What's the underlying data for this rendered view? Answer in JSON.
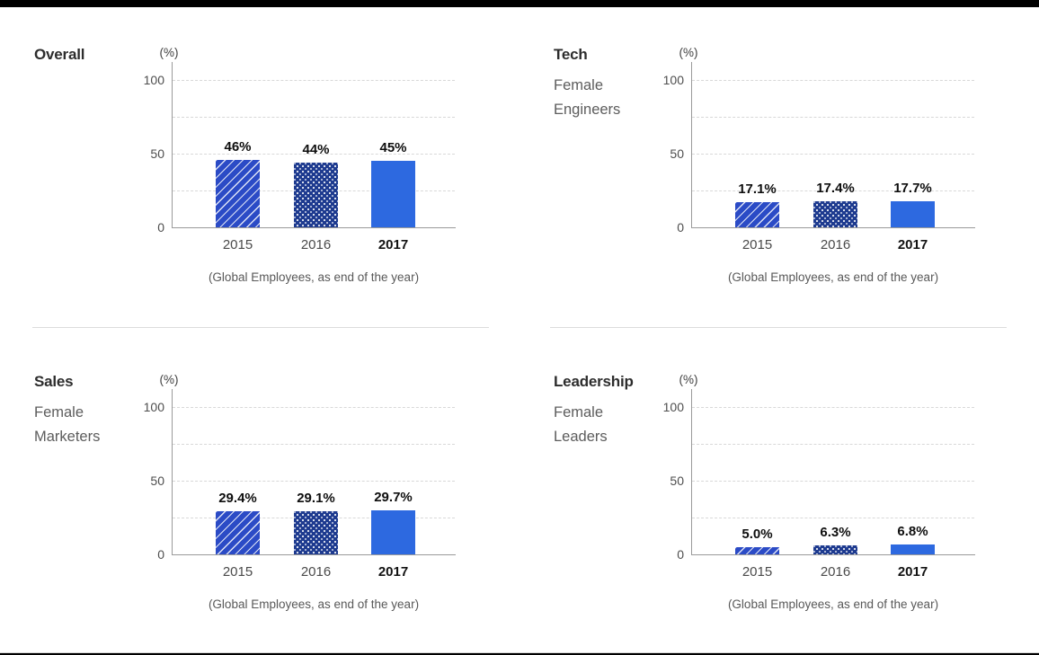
{
  "shared": {
    "unit_label": "(%)",
    "footnote": "(Global Employees, as end of the year)",
    "y_axis_ticks": [
      {
        "label": "100",
        "value": 100
      },
      {
        "label": "50",
        "value": 50
      },
      {
        "label": "0",
        "value": 0
      }
    ],
    "gridline_values": [
      25,
      50,
      75,
      100
    ],
    "highlighted_category": "2017",
    "bar_patterns": {
      "2015": "diagonal-stripes",
      "2016": "dots",
      "2017": "solid"
    },
    "colors": {
      "bar_2015": "#2b4bc6",
      "bar_2016": "#1d3a8f",
      "bar_2017": "#2d69e0",
      "axis_line": "#9a9a9a",
      "gridline": "#d8d8d8",
      "title_text": "#2d2d2d",
      "subtitle_text": "#5c5c5c",
      "value_label_text": "#0e0e0e",
      "top_bottom_bar": "#000000",
      "divider": "#dcdcdc"
    }
  },
  "chart_data": [
    {
      "type": "bar",
      "title": "Overall",
      "subtitle": [],
      "categories": [
        "2015",
        "2016",
        "2017"
      ],
      "values": [
        46,
        44,
        45
      ],
      "value_labels": [
        "46%",
        "44%",
        "45%"
      ],
      "unit": "(%)",
      "ylim": [
        0,
        100
      ],
      "grid": "dashed-horizontal",
      "legend": "none",
      "footnote": "(Global Employees, as end of the year)"
    },
    {
      "type": "bar",
      "title": "Tech",
      "subtitle": [
        "Female",
        "Engineers"
      ],
      "categories": [
        "2015",
        "2016",
        "2017"
      ],
      "values": [
        17.1,
        17.4,
        17.7
      ],
      "value_labels": [
        "17.1%",
        "17.4%",
        "17.7%"
      ],
      "unit": "(%)",
      "ylim": [
        0,
        100
      ],
      "grid": "dashed-horizontal",
      "legend": "none",
      "footnote": "(Global Employees, as end of the year)"
    },
    {
      "type": "bar",
      "title": "Sales",
      "subtitle": [
        "Female",
        "Marketers"
      ],
      "categories": [
        "2015",
        "2016",
        "2017"
      ],
      "values": [
        29.4,
        29.1,
        29.7
      ],
      "value_labels": [
        "29.4%",
        "29.1%",
        "29.7%"
      ],
      "unit": "(%)",
      "ylim": [
        0,
        100
      ],
      "grid": "dashed-horizontal",
      "legend": "none",
      "footnote": "(Global Employees, as end of the year)"
    },
    {
      "type": "bar",
      "title": "Leadership",
      "subtitle": [
        "Female",
        "Leaders"
      ],
      "categories": [
        "2015",
        "2016",
        "2017"
      ],
      "values": [
        5.0,
        6.3,
        6.8
      ],
      "value_labels": [
        "5.0%",
        "6.3%",
        "6.8%"
      ],
      "unit": "(%)",
      "ylim": [
        0,
        100
      ],
      "grid": "dashed-horizontal",
      "legend": "none",
      "footnote": "(Global Employees, as end of the year)"
    }
  ]
}
